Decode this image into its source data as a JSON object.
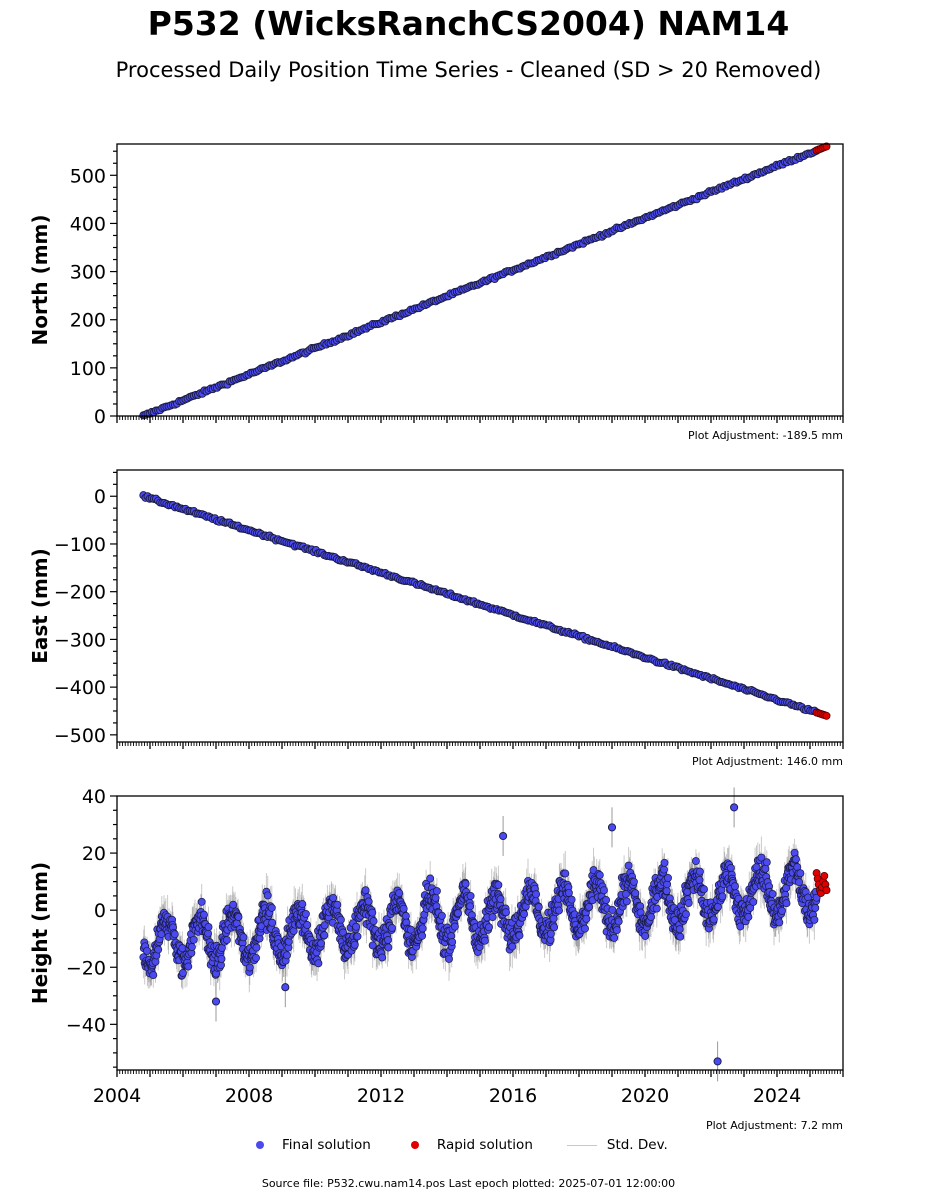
{
  "header": {
    "title": "P532 (WicksRanchCS2004) NAM14",
    "subtitle": "Processed Daily Position Time Series - Cleaned (SD > 20 Removed)"
  },
  "colors": {
    "final": "#4a4af0",
    "rapid": "#e00000",
    "stddev": "#c8c8c8"
  },
  "legend": {
    "final_label": "Final solution",
    "rapid_label": "Rapid solution",
    "std_label": "Std. Dev."
  },
  "footer": {
    "source_text": "Source file: P532.cwu.nam14.pos  Last epoch plotted: 2025-07-01 12:00:00"
  },
  "chart_data": [
    {
      "type": "scatter",
      "ylabel": "North (mm)",
      "xlim": [
        2004.0,
        2026.0
      ],
      "ylim": [
        0,
        565
      ],
      "yticks": [
        0,
        100,
        200,
        300,
        400,
        500
      ],
      "xticks": [
        2004,
        2008,
        2012,
        2016,
        2020,
        2024
      ],
      "show_xticklabels": false,
      "adjustment": "Plot Adjustment: -189.5 mm",
      "trend": {
        "start": [
          2004.8,
          0
        ],
        "end": [
          2025.5,
          560
        ]
      },
      "final_range": [
        2004.8,
        2025.2
      ],
      "rapid_range": [
        2025.2,
        2025.5
      ]
    },
    {
      "type": "scatter",
      "ylabel": "East (mm)",
      "xlim": [
        2004.0,
        2026.0
      ],
      "ylim": [
        -515,
        55
      ],
      "yticks": [
        -500,
        -400,
        -300,
        -200,
        -100,
        0
      ],
      "xticks": [
        2004,
        2008,
        2012,
        2016,
        2020,
        2024
      ],
      "show_xticklabels": false,
      "adjustment": "Plot Adjustment: 146.0 mm",
      "trend": {
        "start": [
          2004.8,
          0
        ],
        "end": [
          2025.5,
          -460
        ]
      },
      "final_range": [
        2004.8,
        2025.2
      ],
      "rapid_range": [
        2025.2,
        2025.5
      ]
    },
    {
      "type": "scatter",
      "ylabel": "Height (mm)",
      "xlim": [
        2004.0,
        2026.0
      ],
      "ylim": [
        -56,
        40
      ],
      "yticks": [
        -40,
        -20,
        0,
        20,
        40
      ],
      "xticks": [
        2004,
        2008,
        2012,
        2016,
        2020,
        2024
      ],
      "show_xticklabels": true,
      "adjustment": "Plot Adjustment: 7.2 mm",
      "trend": {
        "start": [
          2004.8,
          -12
        ],
        "end": [
          2025.5,
          8
        ]
      },
      "seasonal_amplitude_mm": 8,
      "scatter_sd_mm": 4,
      "final_range": [
        2004.8,
        2025.2
      ],
      "rapid_range": [
        2025.2,
        2025.5
      ],
      "rapid_values": [
        13,
        11,
        9,
        7,
        6,
        8,
        10,
        12,
        9,
        7
      ],
      "outliers": [
        {
          "x": 2022.2,
          "y": -53
        },
        {
          "x": 2022.7,
          "y": 36
        },
        {
          "x": 2019.0,
          "y": 29
        },
        {
          "x": 2015.7,
          "y": 26
        },
        {
          "x": 2007.0,
          "y": -32
        },
        {
          "x": 2009.1,
          "y": -27
        }
      ]
    }
  ]
}
